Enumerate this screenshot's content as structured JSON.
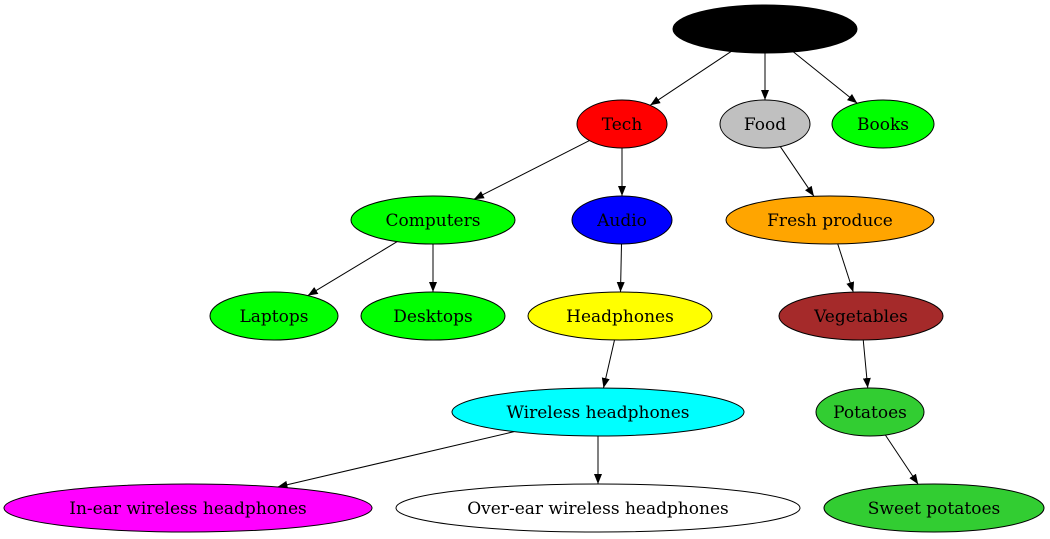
{
  "nodes": [
    {
      "id": "root",
      "label": "",
      "color": "#000000"
    },
    {
      "id": "tech",
      "label": "Tech",
      "color": "#ff0000"
    },
    {
      "id": "food",
      "label": "Food",
      "color": "#c0c0c0"
    },
    {
      "id": "books",
      "label": "Books",
      "color": "#00ff00"
    },
    {
      "id": "computers",
      "label": "Computers",
      "color": "#00ff00"
    },
    {
      "id": "audio",
      "label": "Audio",
      "color": "#0000ff"
    },
    {
      "id": "fresh_produce",
      "label": "Fresh produce",
      "color": "#ffa500"
    },
    {
      "id": "laptops",
      "label": "Laptops",
      "color": "#00ff00"
    },
    {
      "id": "desktops",
      "label": "Desktops",
      "color": "#00ff00"
    },
    {
      "id": "headphones",
      "label": "Headphones",
      "color": "#ffff00"
    },
    {
      "id": "vegetables",
      "label": "Vegetables",
      "color": "#a52a2a"
    },
    {
      "id": "wireless_headphones",
      "label": "Wireless headphones",
      "color": "#00ffff"
    },
    {
      "id": "potatoes",
      "label": "Potatoes",
      "color": "#32cd32"
    },
    {
      "id": "in_ear",
      "label": "In-ear wireless headphones",
      "color": "#ff00ff"
    },
    {
      "id": "over_ear",
      "label": "Over-ear wireless headphones",
      "color": "#ffffff"
    },
    {
      "id": "sweet_potatoes",
      "label": "Sweet potatoes",
      "color": "#32cd32"
    }
  ],
  "edges": [
    [
      "root",
      "tech"
    ],
    [
      "root",
      "food"
    ],
    [
      "root",
      "books"
    ],
    [
      "tech",
      "computers"
    ],
    [
      "tech",
      "audio"
    ],
    [
      "food",
      "fresh_produce"
    ],
    [
      "computers",
      "laptops"
    ],
    [
      "computers",
      "desktops"
    ],
    [
      "audio",
      "headphones"
    ],
    [
      "fresh_produce",
      "vegetables"
    ],
    [
      "headphones",
      "wireless_headphones"
    ],
    [
      "vegetables",
      "potatoes"
    ],
    [
      "wireless_headphones",
      "in_ear"
    ],
    [
      "wireless_headphones",
      "over_ear"
    ],
    [
      "potatoes",
      "sweet_potatoes"
    ]
  ]
}
